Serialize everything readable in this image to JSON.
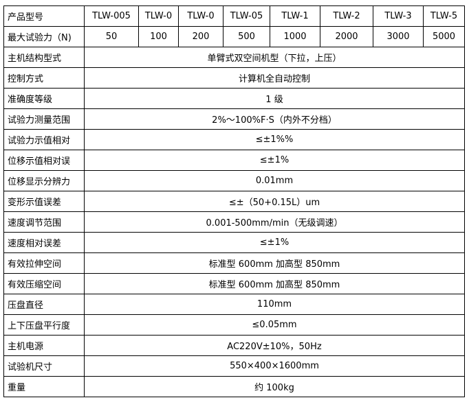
{
  "header": {
    "label": "产品型号",
    "models": [
      "TLW-005",
      "TLW-0",
      "TLW-0",
      "TLW-05",
      "TLW-1",
      "TLW-2",
      "TLW-3",
      "TLW-5"
    ]
  },
  "force_row": {
    "label": "最大试验力（N)",
    "values": [
      "50",
      "100",
      "200",
      "500",
      "1000",
      "2000",
      "3000",
      "5000"
    ]
  },
  "rows": [
    {
      "label": "主机结构型式",
      "value": "单臂式双空间机型（下拉，上压）"
    },
    {
      "label": "控制方式",
      "value": "计算机全自动控制"
    },
    {
      "label": "准确度等级",
      "value": "1 级"
    },
    {
      "label": "试验力测量范围",
      "value": "2%～100%F·S（内外不分档）"
    },
    {
      "label": "试验力示值相对",
      "value": "≤±1%%"
    },
    {
      "label": "位移示值相对误",
      "value": "≤±1%"
    },
    {
      "label": "位移显示分辨力",
      "value": "0.01mm"
    },
    {
      "label": "变形示值误差",
      "value": "≤±（50+0.15L）um"
    },
    {
      "label": "速度调节范围",
      "value": "0.001-500mm/min（无级调速）"
    },
    {
      "label": "速度相对误差",
      "value": "≤±1%"
    },
    {
      "label": "有效拉伸空间",
      "value": "标准型 600mm 加高型 850mm"
    },
    {
      "label": "有效压缩空间",
      "value": "标准型 600mm 加高型 850mm"
    },
    {
      "label": "压盘直径",
      "value": "110mm"
    },
    {
      "label": "上下压盘平行度",
      "value": "≤0.05mm"
    },
    {
      "label": "主机电源",
      "value": "AC220V±10%，50Hz"
    },
    {
      "label": "试验机尺寸",
      "value": "550×400×1600mm"
    },
    {
      "label": "重量",
      "value": "约 100kg"
    }
  ]
}
